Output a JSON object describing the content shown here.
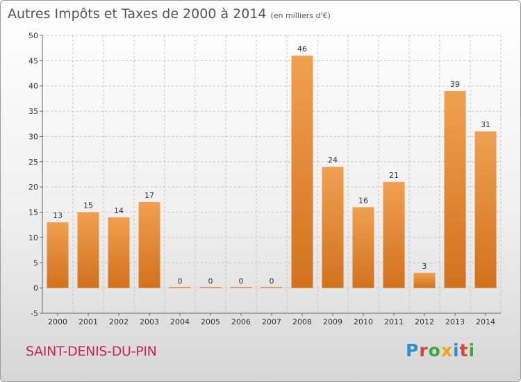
{
  "chart_data": {
    "type": "bar",
    "title": "Autres Impôts et Taxes de 2000 à 2014",
    "unit": "(en milliers d'€)",
    "categories": [
      "2000",
      "2001",
      "2002",
      "2003",
      "2004",
      "2005",
      "2006",
      "2007",
      "2008",
      "2009",
      "2010",
      "2011",
      "2012",
      "2013",
      "2014"
    ],
    "values": [
      13,
      15,
      14,
      17,
      0,
      0,
      0,
      0,
      46,
      24,
      16,
      21,
      3,
      39,
      31
    ],
    "ylim": [
      -5,
      50
    ],
    "yticks": [
      -5,
      0,
      5,
      10,
      15,
      20,
      25,
      30,
      35,
      40,
      45,
      50
    ],
    "grid": true,
    "bar_color": "#f0a050",
    "bar_color_dark": "#d2711c"
  },
  "commune": "SAINT-DENIS-DU-PIN",
  "logo": {
    "letters": [
      "P",
      "r",
      "o",
      "x",
      "i",
      "t",
      "i"
    ],
    "colors": [
      "#2a8fd4",
      "#e0413b",
      "#3aa83a",
      "#f2a312",
      "#2a8fd4",
      "#e0413b",
      "#3aa83a"
    ]
  }
}
